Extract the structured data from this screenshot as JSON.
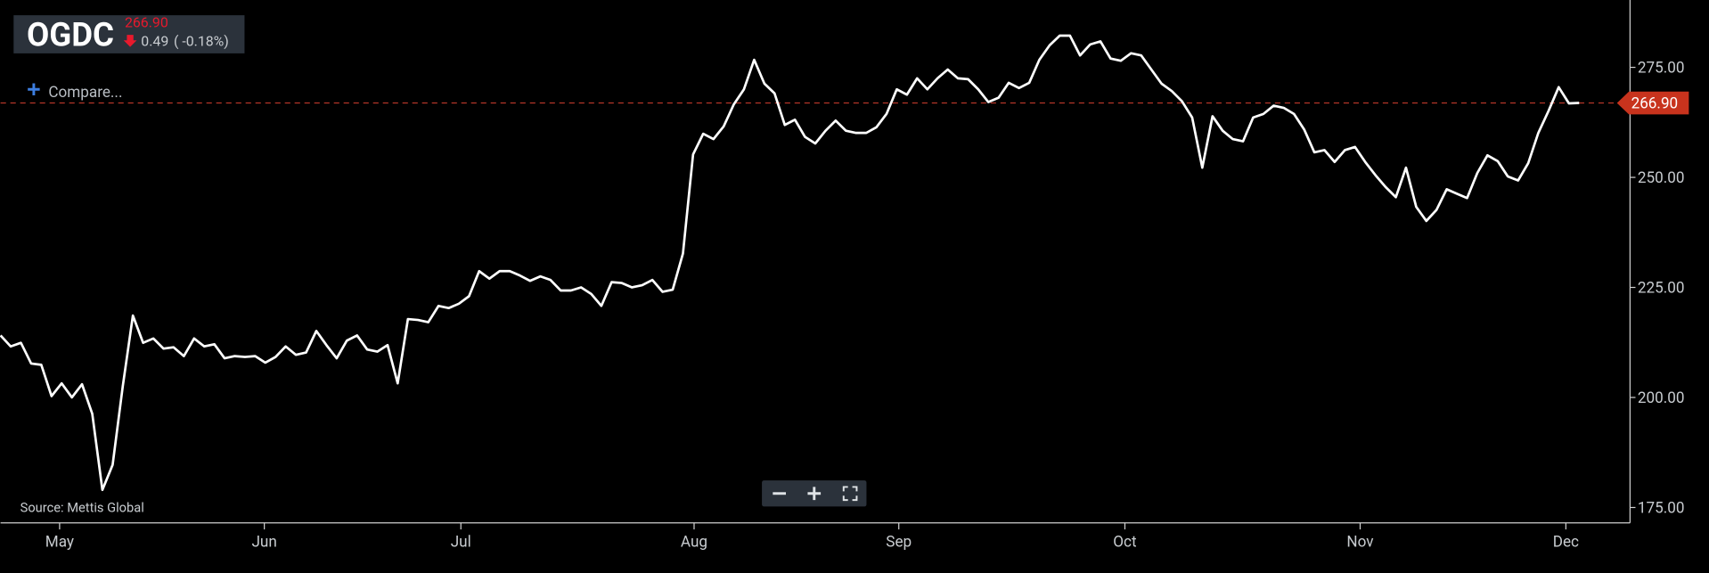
{
  "header": {
    "symbol": "OGDC",
    "change": "0.49",
    "change_pct": "( -0.18%)",
    "compare": "Compare..."
  },
  "chart_data": {
    "type": "line",
    "source": "Source: Mettis Global",
    "series": [
      {
        "color": "#ffffff",
        "values": [
          214.1,
          211.6,
          212.4,
          207.7,
          207.4,
          200.3,
          203.2,
          200.0,
          203.0,
          196.3,
          179.0,
          184.7,
          202.5,
          218.6,
          212.4,
          213.4,
          211.1,
          211.4,
          209.4,
          213.4,
          211.6,
          212.1,
          208.9,
          209.4,
          209.2,
          209.4,
          207.9,
          209.2,
          211.6,
          209.7,
          210.2,
          215.1,
          211.9,
          208.9,
          212.9,
          214.1,
          210.9,
          210.4,
          211.9,
          203.2,
          217.8,
          217.6,
          217.1,
          220.8,
          220.3,
          221.3,
          223.0,
          228.7,
          227.0,
          228.7,
          228.7,
          227.7,
          226.5,
          227.5,
          226.7,
          224.3,
          224.3,
          225.0,
          223.5,
          220.8,
          226.2,
          226.0,
          225.0,
          225.5,
          226.7,
          224.0,
          224.5,
          232.7,
          255.2,
          259.9,
          258.7,
          261.6,
          266.6,
          270.0,
          276.7,
          271.3,
          269.1,
          261.9,
          263.1,
          259.2,
          257.7,
          260.6,
          262.9,
          260.6,
          260.1,
          260.1,
          261.4,
          264.4,
          270.0,
          268.8,
          272.5,
          270.0,
          272.5,
          274.5,
          272.5,
          272.3,
          270.0,
          267.1,
          268.1,
          271.5,
          270.3,
          271.5,
          276.7,
          280.0,
          282.2,
          282.2,
          277.7,
          280.2,
          280.9,
          277.0,
          276.5,
          278.2,
          277.7,
          274.5,
          271.3,
          269.6,
          267.3,
          263.6,
          252.2,
          263.9,
          260.6,
          258.7,
          258.2,
          263.6,
          264.4,
          266.3,
          265.8,
          264.4,
          260.9,
          255.7,
          256.2,
          253.5,
          256.2,
          256.9,
          253.5,
          250.5,
          247.8,
          245.5,
          252.2,
          243.3,
          240.1,
          242.6,
          247.3,
          246.3,
          245.3,
          251.0,
          255.0,
          253.7,
          250.2,
          249.3,
          253.2,
          260.1,
          265.1,
          270.5,
          266.8,
          266.9
        ]
      }
    ],
    "price_line": {
      "value": 266.9,
      "label": "266.90"
    },
    "xlim": [
      0,
      160
    ],
    "xticks": [
      {
        "value": 5.8,
        "label": "May"
      },
      {
        "value": 25.9,
        "label": "Jun"
      },
      {
        "value": 45.2,
        "label": "Jul"
      },
      {
        "value": 68.1,
        "label": "Aug"
      },
      {
        "value": 88.2,
        "label": "Sep"
      },
      {
        "value": 110.4,
        "label": "Oct"
      },
      {
        "value": 133.5,
        "label": "Nov"
      },
      {
        "value": 153.7,
        "label": "Dec"
      }
    ],
    "ylim": [
      171.5,
      290.3
    ],
    "yticks": [
      {
        "value": 175,
        "label": "175.00"
      },
      {
        "value": 200,
        "label": "200.00"
      },
      {
        "value": 225,
        "label": "225.00"
      },
      {
        "value": 250,
        "label": "250.00"
      },
      {
        "value": 275,
        "label": "275.00"
      }
    ]
  }
}
